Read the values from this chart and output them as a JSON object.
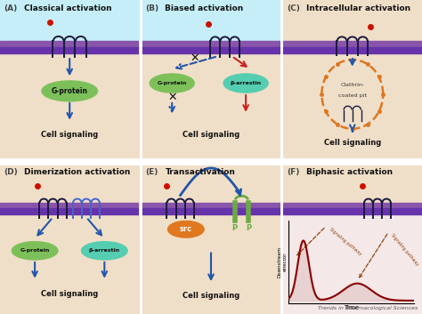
{
  "panel_labels": [
    "(A)",
    "(B)",
    "(C)",
    "(D)",
    "(E)",
    "(F)"
  ],
  "panel_titles": [
    "Classical activation",
    "Biased activation",
    "Intracellular activation",
    "Dimerization activation",
    "Transactivation",
    "Biphasic activation"
  ],
  "bg_blue": "#c5eef8",
  "bg_tan": "#f0dfc8",
  "bg_pink": "#f5e8e8",
  "membrane_upper": "#8855aa",
  "membrane_lower": "#6633aa",
  "g_protein_color": "#7dc05a",
  "b_arrestin_color": "#55cdb0",
  "src_color": "#e07820",
  "rtk_color": "#6aaa44",
  "arrow_blue": "#2255aa",
  "arrow_red": "#cc2222",
  "ligand_red": "#cc1100",
  "clathrin_orange": "#dd7722",
  "text_dark": "#111111",
  "label_gray": "#444444",
  "journal_text": "Trends in Pharmacological Sciences",
  "white": "#ffffff",
  "border_white": "#ffffff"
}
